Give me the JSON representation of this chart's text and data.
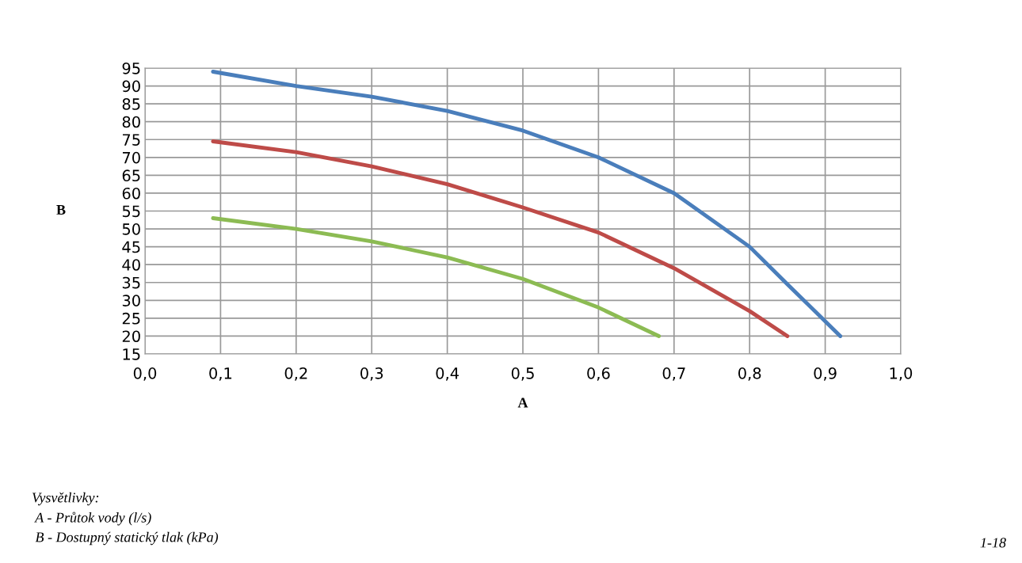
{
  "chart_data": {
    "type": "line",
    "xlabel": "A",
    "ylabel": "B",
    "series": [
      {
        "color": "#4a7ebb",
        "x": [
          0.09,
          0.2,
          0.3,
          0.4,
          0.5,
          0.6,
          0.7,
          0.8,
          0.85,
          0.92
        ],
        "values": [
          94,
          90,
          87,
          83,
          77.5,
          70,
          60,
          45,
          34.5,
          20
        ]
      },
      {
        "color": "#be4b48",
        "x": [
          0.09,
          0.2,
          0.3,
          0.4,
          0.5,
          0.6,
          0.7,
          0.8,
          0.85
        ],
        "values": [
          74.5,
          71.5,
          67.5,
          62.5,
          56,
          49,
          39,
          27,
          20
        ]
      },
      {
        "color": "#8cbb53",
        "x": [
          0.09,
          0.2,
          0.3,
          0.4,
          0.5,
          0.6,
          0.68
        ],
        "values": [
          53,
          50,
          46.5,
          42,
          36,
          28,
          20
        ]
      }
    ],
    "xlim": [
      0,
      1
    ],
    "xticks": [
      {
        "value": 0,
        "label": "0,0"
      },
      {
        "value": 0.1,
        "label": "0,1"
      },
      {
        "value": 0.2,
        "label": "0,2"
      },
      {
        "value": 0.3,
        "label": "0,3"
      },
      {
        "value": 0.4,
        "label": "0,4"
      },
      {
        "value": 0.5,
        "label": "0,5"
      },
      {
        "value": 0.6,
        "label": "0,6"
      },
      {
        "value": 0.7,
        "label": "0,7"
      },
      {
        "value": 0.8,
        "label": "0,8"
      },
      {
        "value": 0.9,
        "label": "0,9"
      },
      {
        "value": 1,
        "label": "1,0"
      }
    ],
    "ylim": [
      15,
      95
    ],
    "yticks": [
      15,
      20,
      25,
      30,
      35,
      40,
      45,
      50,
      55,
      60,
      65,
      70,
      75,
      80,
      85,
      90,
      95
    ],
    "grid": true,
    "marker": "none",
    "line_style": "solid",
    "legend": false,
    "annotations": [
      "Vysvětlivky:",
      " A - Průtok vody (l/s)",
      " B - Dostupný statický tlak (kPa)",
      "1-18"
    ]
  }
}
